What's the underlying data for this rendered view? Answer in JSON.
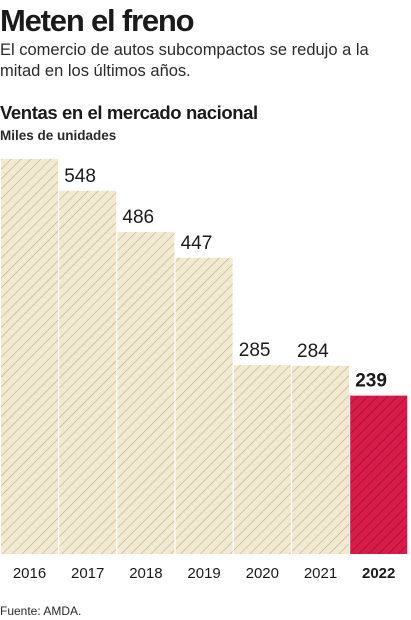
{
  "header": {
    "headline": "Meten el freno",
    "dek": "El comercio de autos subcompactos se redujo a la mitad en los últimos años."
  },
  "chart_data": {
    "type": "bar",
    "title": "Ventas en el mercado nacional",
    "subtitle": "Miles de unidades",
    "categories": [
      "2016",
      "2017",
      "2018",
      "2019",
      "2020",
      "2021",
      "2022"
    ],
    "values": [
      596,
      548,
      486,
      447,
      285,
      284,
      239
    ],
    "highlight": "2022",
    "ylim": [
      0,
      596
    ],
    "grid": false,
    "colors": {
      "bar_fill": "#f2ead0",
      "bar_hatch": "#b8b090",
      "highlight_fill": "#d81c4a",
      "highlight_hatch": "#8e0f2e",
      "text": "#1a1a1a"
    }
  },
  "footer": {
    "source": "Fuente: AMDA."
  }
}
